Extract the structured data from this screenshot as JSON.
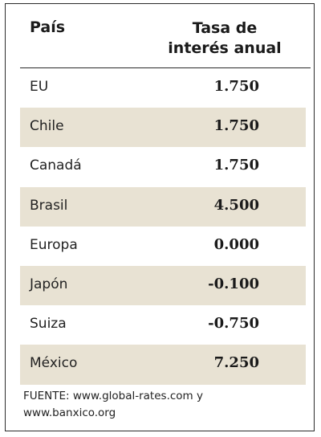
{
  "header": {
    "country": "País",
    "rate_line1": "Tasa de",
    "rate_line2": "interés anual"
  },
  "rows": [
    {
      "country": "EU",
      "rate": "1.750"
    },
    {
      "country": "Chile",
      "rate": "1.750"
    },
    {
      "country": "Canadá",
      "rate": "1.750"
    },
    {
      "country": "Brasil",
      "rate": "4.500"
    },
    {
      "country": "Europa",
      "rate": "0.000"
    },
    {
      "country": "Japón",
      "rate": "-0.100"
    },
    {
      "country": "Suiza",
      "rate": "-0.750"
    },
    {
      "country": "México",
      "rate": "7.250"
    }
  ],
  "source": {
    "line1": "FUENTE: www.global-rates.com y",
    "line2": "www.banxico.org"
  },
  "colors": {
    "row_shade": "#e8e2d3",
    "border": "#2a2a2a"
  }
}
